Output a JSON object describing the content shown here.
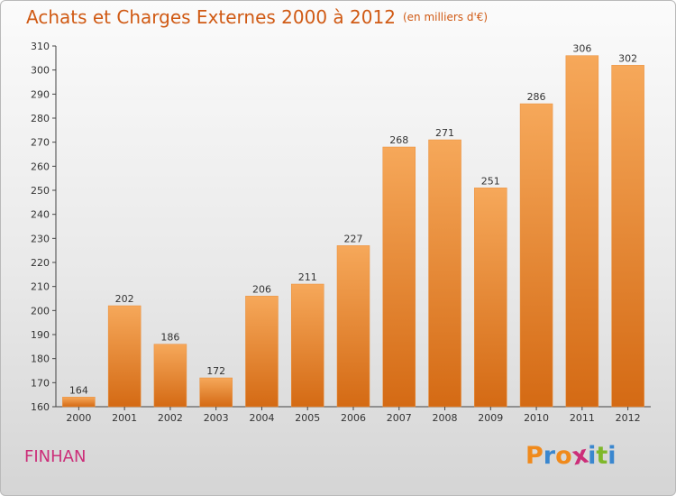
{
  "header": {
    "title": "Achats et Charges Externes 2000 à 2012",
    "unit": "(en milliers d'€)"
  },
  "footer": {
    "place": "FINHAN",
    "logo_letters": [
      "P",
      "r",
      "o",
      "x",
      "i",
      "t",
      "i"
    ],
    "logo_colors": [
      "#f08a1c",
      "#3a87cf",
      "#f08a1c",
      "#cc2e79",
      "#3a87cf",
      "#7fb82b",
      "#3a87cf"
    ]
  },
  "colors": {
    "accent": "#d05a14",
    "bar_top": "#f6a85a",
    "bar_bottom": "#d46a14",
    "place": "#cc2e79"
  },
  "chart_data": {
    "type": "bar",
    "title": "Achats et Charges Externes 2000 à 2012",
    "subtitle": "(en milliers d'€)",
    "categories": [
      "2000",
      "2001",
      "2002",
      "2003",
      "2004",
      "2005",
      "2006",
      "2007",
      "2008",
      "2009",
      "2010",
      "2011",
      "2012"
    ],
    "values": [
      164,
      202,
      186,
      172,
      206,
      211,
      227,
      268,
      271,
      251,
      286,
      306,
      302
    ],
    "ylim": [
      160,
      310
    ],
    "yticks": [
      160,
      170,
      180,
      190,
      200,
      210,
      220,
      230,
      240,
      250,
      260,
      270,
      280,
      290,
      300,
      310
    ],
    "grid": false,
    "xlabel": "",
    "ylabel": ""
  }
}
